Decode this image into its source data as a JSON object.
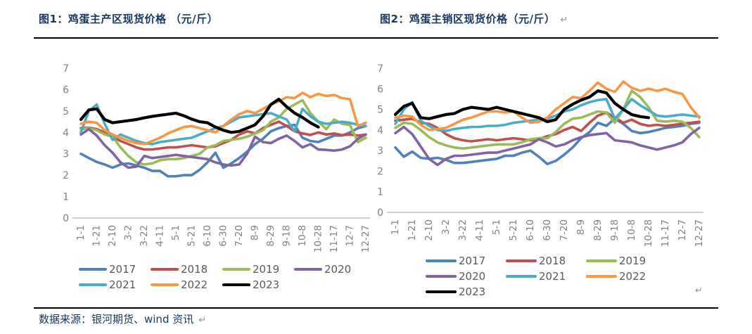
{
  "source_note": "数据来源：银河期货、wind 资讯",
  "marks": {
    "after_title2": "↵",
    "after_legend2": "↵",
    "after_source": "↵"
  },
  "axis_style": {
    "tick_color": "#808080",
    "baseline_color": "#BFBFBF"
  },
  "chart_data": [
    {
      "type": "line",
      "title": "图1：鸡蛋主产区现货价格 （元/斤）",
      "xlabel": "",
      "ylabel": "",
      "ylim": [
        0,
        7
      ],
      "y_ticks": [
        0,
        1,
        2,
        3,
        4,
        5,
        6,
        7
      ],
      "grid": false,
      "x_tick_labels": [
        "1-1",
        "1-21",
        "2-10",
        "3-2",
        "3-22",
        "4-11",
        "5-1",
        "5-21",
        "6-10",
        "6-30",
        "7-20",
        "8-9",
        "8-29",
        "9-18",
        "10-8",
        "10-28",
        "11-17",
        "12-7",
        "12-27"
      ],
      "x_interval_days": 10,
      "legend_position": "bottom",
      "legend_rows": [
        [
          "2017",
          "2018",
          "2019",
          "2020"
        ],
        [
          "2021",
          "2022",
          "2023"
        ]
      ],
      "series": [
        {
          "name": "2017",
          "color": "#4F81BD",
          "values": [
            3.0,
            2.8,
            2.62,
            2.5,
            2.35,
            2.5,
            2.55,
            2.45,
            2.35,
            2.2,
            2.2,
            1.95,
            1.95,
            2.0,
            2.0,
            2.25,
            2.6,
            3.05,
            2.35,
            2.55,
            2.8,
            3.1,
            3.45,
            3.7,
            4.05,
            4.2,
            4.3,
            4.35,
            3.75,
            3.6,
            3.55,
            3.7,
            3.85,
            3.85,
            4.0,
            4.2,
            4.3
          ]
        },
        {
          "name": "2018",
          "color": "#C0504D",
          "values": [
            4.2,
            4.22,
            4.15,
            4.0,
            3.8,
            3.6,
            3.45,
            3.3,
            3.2,
            3.2,
            3.25,
            3.3,
            3.3,
            3.35,
            3.4,
            3.35,
            3.3,
            3.35,
            3.5,
            3.65,
            3.9,
            4.05,
            3.95,
            4.2,
            4.35,
            4.5,
            4.3,
            4.05,
            3.95,
            3.88,
            4.0,
            3.9,
            3.95,
            3.87,
            3.9,
            3.85,
            3.9
          ]
        },
        {
          "name": "2019",
          "color": "#9BBB59",
          "values": [
            4.15,
            4.2,
            4.1,
            3.9,
            3.8,
            3.3,
            2.9,
            2.6,
            2.5,
            2.55,
            2.7,
            2.75,
            2.75,
            2.8,
            2.9,
            3.0,
            3.3,
            3.4,
            3.6,
            3.65,
            3.7,
            3.8,
            3.95,
            4.1,
            4.5,
            4.7,
            5.1,
            5.3,
            5.5,
            4.9,
            4.5,
            4.15,
            4.6,
            4.4,
            4.35,
            3.55,
            3.75
          ]
        },
        {
          "name": "2020",
          "color": "#8064A2",
          "values": [
            3.9,
            4.15,
            3.85,
            3.4,
            3.05,
            2.6,
            2.35,
            2.4,
            2.9,
            2.8,
            2.85,
            2.9,
            2.95,
            2.9,
            2.85,
            2.8,
            2.75,
            2.6,
            2.5,
            2.45,
            2.5,
            3.0,
            3.8,
            3.55,
            3.5,
            3.7,
            3.85,
            3.6,
            3.3,
            3.45,
            3.2,
            3.18,
            3.15,
            3.2,
            3.35,
            3.7,
            3.9
          ]
        },
        {
          "name": "2021",
          "color": "#4BACC6",
          "values": [
            4.0,
            5.0,
            5.3,
            4.4,
            3.65,
            3.9,
            3.75,
            3.6,
            3.5,
            3.45,
            3.55,
            3.6,
            3.65,
            3.7,
            3.75,
            3.9,
            4.05,
            4.2,
            4.3,
            4.5,
            4.7,
            4.75,
            4.8,
            4.85,
            4.9,
            4.75,
            4.6,
            4.05,
            5.1,
            4.75,
            4.5,
            4.4,
            4.45,
            4.5,
            4.45,
            4.35,
            4.3
          ]
        },
        {
          "name": "2022",
          "color": "#F79646",
          "values": [
            4.4,
            4.5,
            4.45,
            4.1,
            3.9,
            3.75,
            3.6,
            3.5,
            3.45,
            3.6,
            3.75,
            3.95,
            4.1,
            4.25,
            4.3,
            4.2,
            4.1,
            4.0,
            4.3,
            4.6,
            4.85,
            5.0,
            4.9,
            5.1,
            5.3,
            5.45,
            5.65,
            5.6,
            5.85,
            5.65,
            5.8,
            5.7,
            5.75,
            5.6,
            5.55,
            4.3,
            4.45
          ]
        },
        {
          "name": "2023",
          "color": "#000000",
          "values": [
            4.6,
            5.05,
            5.1,
            4.6,
            4.45,
            4.5,
            4.55,
            4.6,
            4.68,
            4.75,
            4.8,
            4.85,
            4.9,
            4.78,
            4.62,
            4.5,
            4.45,
            4.25,
            4.1,
            4.0,
            4.05,
            4.2,
            4.35,
            4.75,
            5.3,
            5.55,
            5.2,
            4.9,
            4.7,
            4.45,
            4.25
          ]
        }
      ]
    },
    {
      "type": "line",
      "title": "图2：鸡蛋主销区现货价格（元/斤）",
      "xlabel": "",
      "ylabel": "",
      "ylim": [
        0,
        7
      ],
      "y_ticks": [
        0,
        1,
        2,
        3,
        4,
        5,
        6,
        7
      ],
      "grid": false,
      "x_tick_labels": [
        "1-1",
        "1-21",
        "2-10",
        "3-2",
        "3-22",
        "4-11",
        "5-1",
        "5-21",
        "6-10",
        "6-30",
        "7-20",
        "8-9",
        "8-29",
        "9-18",
        "10-8",
        "10-28",
        "11-17",
        "12-7",
        "12-27"
      ],
      "x_interval_days": 10,
      "legend_position": "bottom",
      "legend_rows": [
        [
          "2017",
          "2018",
          "2019"
        ],
        [
          "2020",
          "2021",
          "2022"
        ],
        [
          "2023"
        ]
      ],
      "series": [
        {
          "name": "2017",
          "color": "#4F81BD",
          "values": [
            3.15,
            2.7,
            2.95,
            2.65,
            2.6,
            2.65,
            2.55,
            2.4,
            2.4,
            2.45,
            2.5,
            2.55,
            2.6,
            2.75,
            2.75,
            2.9,
            3.0,
            2.7,
            2.35,
            2.5,
            2.8,
            3.15,
            3.6,
            3.9,
            4.35,
            4.2,
            4.55,
            4.3,
            3.95,
            3.85,
            3.9,
            4.0,
            4.1,
            4.15,
            4.2,
            4.3,
            4.35
          ]
        },
        {
          "name": "2018",
          "color": "#C0504D",
          "values": [
            4.45,
            4.5,
            4.55,
            4.35,
            4.3,
            4.1,
            3.8,
            3.6,
            3.5,
            3.45,
            3.5,
            3.55,
            3.5,
            3.55,
            3.6,
            3.55,
            3.5,
            3.55,
            3.7,
            3.8,
            4.0,
            4.15,
            3.95,
            4.35,
            4.7,
            4.85,
            4.6,
            4.35,
            4.5,
            4.3,
            4.2,
            4.25,
            4.2,
            4.25,
            4.3,
            4.35,
            4.4
          ]
        },
        {
          "name": "2019",
          "color": "#9BBB59",
          "values": [
            4.1,
            4.35,
            4.3,
            4.0,
            3.65,
            3.4,
            3.25,
            3.15,
            3.1,
            3.15,
            3.2,
            3.25,
            3.3,
            3.3,
            3.3,
            3.4,
            3.55,
            3.6,
            3.6,
            3.9,
            4.3,
            4.55,
            4.6,
            4.75,
            4.9,
            4.85,
            4.35,
            5.0,
            5.9,
            5.6,
            5.1,
            4.45,
            4.4,
            4.45,
            4.4,
            4.1,
            3.65
          ]
        },
        {
          "name": "2020",
          "color": "#8064A2",
          "values": [
            3.85,
            4.15,
            3.8,
            3.2,
            2.6,
            2.3,
            2.6,
            2.75,
            2.75,
            2.8,
            2.85,
            2.9,
            2.9,
            3.0,
            3.1,
            3.2,
            3.3,
            3.55,
            3.4,
            3.2,
            3.3,
            3.5,
            3.65,
            3.75,
            3.8,
            3.85,
            3.5,
            3.45,
            3.4,
            3.25,
            3.15,
            3.05,
            3.15,
            3.25,
            3.4,
            3.8,
            4.1
          ]
        },
        {
          "name": "2021",
          "color": "#4BACC6",
          "values": [
            4.3,
            5.0,
            5.35,
            4.45,
            4.2,
            4.0,
            3.95,
            4.05,
            4.1,
            4.15,
            4.15,
            4.2,
            4.2,
            4.25,
            4.35,
            4.4,
            4.45,
            4.5,
            4.55,
            4.7,
            4.9,
            5.0,
            5.2,
            5.35,
            5.45,
            5.5,
            4.55,
            5.0,
            5.5,
            5.2,
            4.95,
            4.7,
            4.65,
            4.7,
            4.75,
            4.7,
            4.65
          ]
        },
        {
          "name": "2022",
          "color": "#F79646",
          "values": [
            4.6,
            4.7,
            4.65,
            4.25,
            4.0,
            4.05,
            4.1,
            4.3,
            4.5,
            4.6,
            4.75,
            4.9,
            4.9,
            4.85,
            4.9,
            4.6,
            4.35,
            4.4,
            4.6,
            5.0,
            5.3,
            5.6,
            5.55,
            5.9,
            6.3,
            6.0,
            5.85,
            6.35,
            6.05,
            5.9,
            6.0,
            5.9,
            6.0,
            5.85,
            5.75,
            5.1,
            4.6
          ]
        },
        {
          "name": "2023",
          "color": "#000000",
          "values": [
            4.75,
            5.15,
            5.3,
            4.6,
            4.55,
            4.65,
            4.75,
            4.8,
            5.0,
            5.1,
            5.05,
            5.0,
            5.1,
            5.0,
            4.9,
            4.8,
            4.7,
            4.6,
            4.4,
            4.5,
            5.0,
            5.25,
            5.45,
            5.6,
            5.9,
            5.8,
            5.3,
            5.0,
            4.75,
            4.65,
            4.6
          ]
        }
      ]
    }
  ]
}
